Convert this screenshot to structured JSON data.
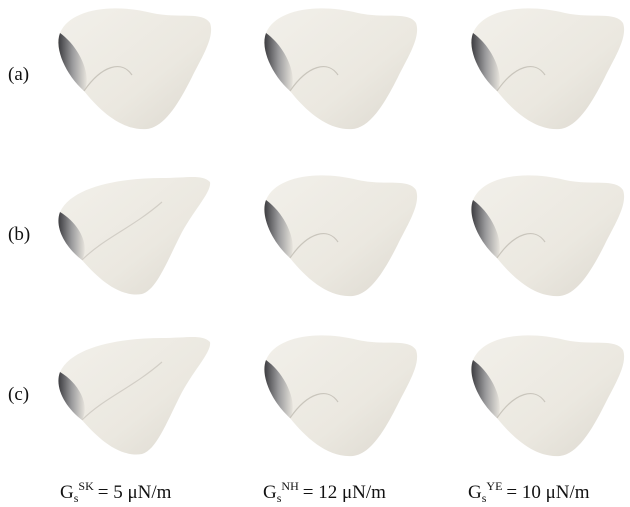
{
  "row_labels": [
    "(a)",
    "(b)",
    "(c)"
  ],
  "column_labels": [
    {
      "symbol": "G",
      "subscript": "s",
      "superscript": "SK",
      "text": "= 5 μN/m"
    },
    {
      "symbol": "G",
      "subscript": "s",
      "superscript": "NH",
      "text": "= 12 μN/m"
    },
    {
      "symbol": "G",
      "subscript": "s",
      "superscript": "YE",
      "text": "= 10 μN/m"
    }
  ]
}
